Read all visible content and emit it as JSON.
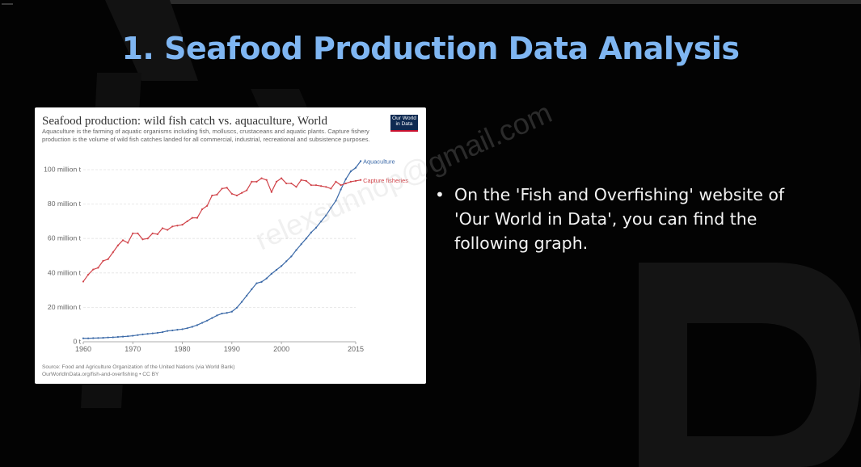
{
  "slide": {
    "title": "1. Seafood Production Data Analysis",
    "bullet": "On the 'Fish and Overfishing' website of 'Our World in Data', you can find the following graph.",
    "watermark": "relexsunnop@gmail.com"
  },
  "colors": {
    "title": "#7fb6f2",
    "aquaculture": "#3c6aa8",
    "capture": "#d1454b",
    "background": "#030303"
  },
  "chart_data": {
    "type": "line",
    "title": "Seafood production: wild fish catch vs. aquaculture, World",
    "subtitle": "Aquaculture is the farming of aquatic organisms including fish, molluscs, crustaceans and aquatic plants. Capture fishery production is the volume of wild fish catches landed for all commercial, industrial, recreational and subsistence purposes.",
    "logo": [
      "Our World",
      "in Data"
    ],
    "source": "Source: Food and Agriculture Organization of the United Nations (via World Bank)",
    "license": "OurWorldInData.org/fish-and-overfishing • CC BY",
    "xlim": [
      1960,
      2015
    ],
    "ylim": [
      0,
      100
    ],
    "x_ticks": [
      1960,
      1970,
      1980,
      1990,
      2000,
      2015
    ],
    "y_ticks": [
      {
        "value": 0,
        "label": "0 t"
      },
      {
        "value": 20,
        "label": "20 million t"
      },
      {
        "value": 40,
        "label": "40 million t"
      },
      {
        "value": 60,
        "label": "60 million t"
      },
      {
        "value": 80,
        "label": "80 million t"
      },
      {
        "value": 100,
        "label": "100 million t"
      }
    ],
    "grid": "horizontal",
    "legend": "line-end labels",
    "x": [
      1960,
      1961,
      1962,
      1963,
      1964,
      1965,
      1966,
      1967,
      1968,
      1969,
      1970,
      1971,
      1972,
      1973,
      1974,
      1975,
      1976,
      1977,
      1978,
      1979,
      1980,
      1981,
      1982,
      1983,
      1984,
      1985,
      1986,
      1987,
      1988,
      1989,
      1990,
      1991,
      1992,
      1993,
      1994,
      1995,
      1996,
      1997,
      1998,
      1999,
      2000,
      2001,
      2002,
      2003,
      2004,
      2005,
      2006,
      2007,
      2008,
      2009,
      2010,
      2011,
      2012,
      2013,
      2014,
      2015,
      2016
    ],
    "series": [
      {
        "name": "Aquaculture",
        "color": "#3c6aa8",
        "values": [
          2.0,
          2.0,
          2.1,
          2.2,
          2.3,
          2.5,
          2.6,
          2.8,
          3.0,
          3.2,
          3.5,
          3.9,
          4.3,
          4.6,
          4.9,
          5.2,
          5.6,
          6.3,
          6.6,
          7.0,
          7.3,
          7.9,
          8.7,
          9.7,
          11.0,
          12.3,
          13.8,
          15.3,
          16.4,
          16.8,
          17.5,
          19.8,
          23.2,
          26.8,
          30.5,
          34.0,
          34.8,
          36.8,
          39.5,
          41.8,
          44.0,
          46.8,
          49.6,
          53.3,
          56.7,
          60.0,
          63.5,
          66.3,
          69.9,
          73.4,
          77.8,
          82.0,
          88.5,
          94.5,
          99.0,
          101.1,
          105.0
        ]
      },
      {
        "name": "Capture fisheries",
        "color": "#d1454b",
        "values": [
          35.0,
          39.0,
          42.0,
          43.0,
          47.0,
          48.0,
          52.0,
          56.0,
          59.0,
          57.5,
          63.0,
          63.0,
          59.5,
          60.0,
          63.0,
          62.5,
          66.0,
          65.0,
          67.0,
          67.5,
          68.0,
          70.0,
          72.0,
          72.0,
          77.0,
          79.0,
          85.0,
          85.5,
          89.0,
          89.5,
          86.0,
          85.0,
          86.5,
          88.0,
          93.0,
          93.0,
          95.0,
          94.0,
          87.0,
          93.0,
          95.0,
          92.0,
          92.0,
          90.0,
          94.0,
          93.5,
          91.0,
          91.0,
          90.5,
          90.0,
          89.0,
          93.0,
          91.0,
          92.0,
          93.0,
          93.5,
          94.0
        ]
      }
    ]
  }
}
